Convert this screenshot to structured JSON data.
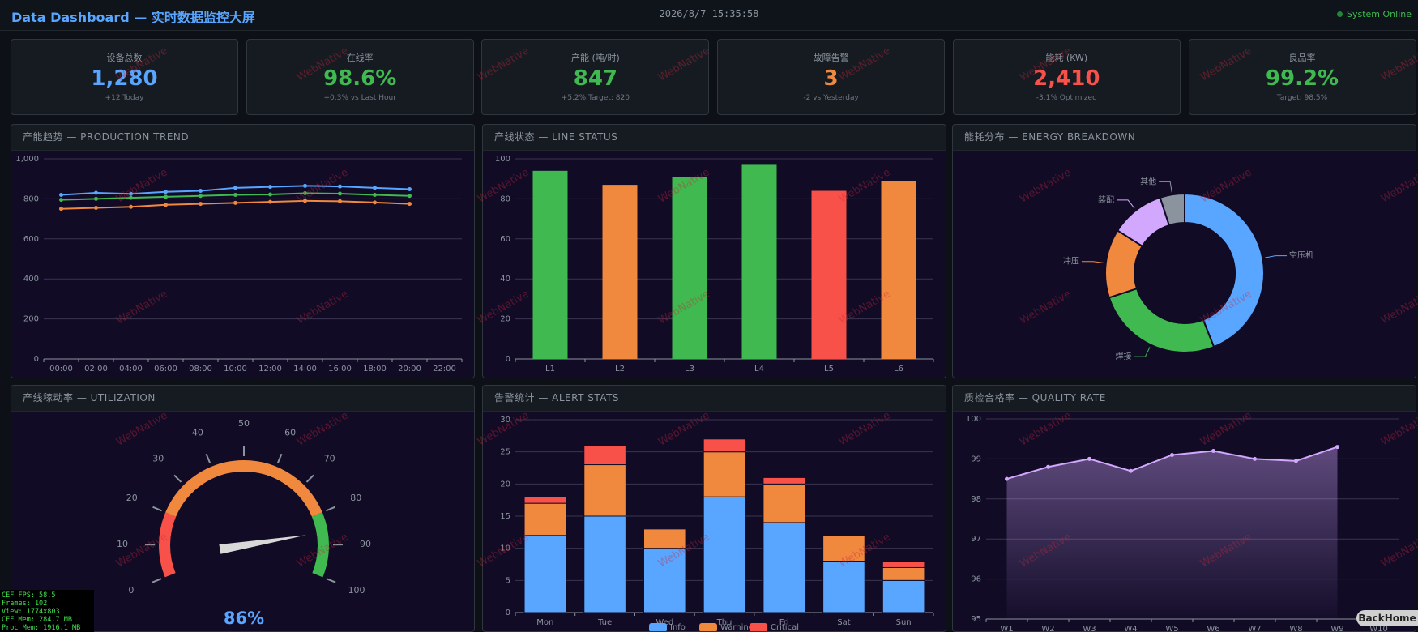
{
  "header": {
    "title": "Data Dashboard — 实时数据监控大屏",
    "time": "2026/8/7 15:35:58",
    "status": "System Online"
  },
  "kpis": [
    {
      "label": "设备总数",
      "value": "1,280",
      "note": "+12 Today",
      "color": "#58a6ff"
    },
    {
      "label": "在线率",
      "value": "98.6%",
      "note": "+0.3% vs Last Hour",
      "color": "#3fb950"
    },
    {
      "label": "产能 (吨/时)",
      "value": "847",
      "note": "+5.2% Target: 820",
      "color": "#3fb950"
    },
    {
      "label": "故障告警",
      "value": "3",
      "note": "-2 vs Yesterday",
      "color": "#f0883e"
    },
    {
      "label": "能耗 (KW)",
      "value": "2,410",
      "note": "-3.1% Optimized",
      "color": "#f85149"
    },
    {
      "label": "良品率",
      "value": "99.2%",
      "note": "Target: 98.5%",
      "color": "#3fb950"
    }
  ],
  "watermark": "WebNative",
  "debug": [
    "CEF FPS: 58.5",
    "Frames: 102",
    "View: 1774x803",
    "CEF Mem: 284.7 MB",
    "Proc Mem: 1916.1 MB"
  ],
  "back_button": "BackHome",
  "chart_data": [
    {
      "type": "line",
      "title": "产能趋势 — PRODUCTION TREND",
      "categories": [
        "00:00",
        "02:00",
        "04:00",
        "06:00",
        "08:00",
        "10:00",
        "12:00",
        "14:00",
        "16:00",
        "18:00",
        "20:00",
        "22:00"
      ],
      "series": [
        {
          "color": "#58a6ff",
          "values": [
            820,
            830,
            825,
            835,
            840,
            855,
            860,
            865,
            862,
            855,
            848,
            null
          ]
        },
        {
          "color": "#3fb950",
          "values": [
            795,
            800,
            805,
            810,
            815,
            820,
            822,
            828,
            826,
            820,
            815,
            null
          ]
        },
        {
          "color": "#f0883e",
          "values": [
            750,
            755,
            760,
            770,
            775,
            780,
            785,
            790,
            788,
            782,
            775,
            null
          ]
        }
      ],
      "ylim": [
        0,
        1000
      ],
      "yticks": [
        0,
        200,
        400,
        600,
        800,
        {
          "value": 1000,
          "label": "1,000"
        }
      ],
      "grid": true
    },
    {
      "type": "bar",
      "title": "产线状态 — LINE STATUS",
      "categories": [
        "L1",
        "L2",
        "L3",
        "L4",
        "L5",
        "L6"
      ],
      "values": [
        94,
        87,
        91,
        97,
        84,
        89
      ],
      "colors": [
        "#3fb950",
        "#f0883e",
        "#3fb950",
        "#3fb950",
        "#f85149",
        "#f0883e"
      ],
      "ylim": [
        0,
        100
      ],
      "yticks": [
        0,
        20,
        40,
        60,
        80,
        100
      ],
      "grid": true
    },
    {
      "type": "pie",
      "title": "能耗分布 — ENERGY BREAKDOWN",
      "donut": true,
      "categories": [
        "空压机",
        "焊接",
        "冲压",
        "装配",
        "其他"
      ],
      "values": [
        44,
        26,
        14,
        11,
        5
      ],
      "colors": [
        "#58a6ff",
        "#3fb950",
        "#f0883e",
        "#d2a8ff",
        "#8b949e"
      ]
    },
    {
      "type": "gauge",
      "title": "产线稼动率 — UTILIZATION",
      "value": 86,
      "value_label": "86%",
      "ylim": [
        0,
        100
      ],
      "yticks": [
        0,
        10,
        20,
        30,
        40,
        50,
        60,
        70,
        80,
        90,
        100
      ],
      "bands": [
        {
          "to": 20,
          "color": "#f85149"
        },
        {
          "to": 80,
          "color": "#f0883e"
        },
        {
          "to": 100,
          "color": "#3fb950"
        }
      ]
    },
    {
      "type": "bar",
      "stacked": true,
      "title": "告警统计 — ALERT STATS",
      "categories": [
        "Mon",
        "Tue",
        "Wed",
        "Thu",
        "Fri",
        "Sat",
        "Sun"
      ],
      "series": [
        {
          "name": "Info",
          "color": "#58a6ff",
          "values": [
            12,
            15,
            10,
            18,
            14,
            8,
            5
          ]
        },
        {
          "name": "Warning",
          "color": "#f0883e",
          "values": [
            5,
            8,
            3,
            7,
            6,
            4,
            2
          ]
        },
        {
          "name": "Critical",
          "color": "#f85149",
          "values": [
            1,
            3,
            0,
            2,
            1,
            0,
            1
          ]
        }
      ],
      "ylim": [
        0,
        30
      ],
      "yticks": [
        0,
        5,
        10,
        15,
        20,
        25,
        30
      ],
      "grid": true,
      "legend": "bottom"
    },
    {
      "type": "area",
      "title": "质检合格率 — QUALITY RATE",
      "categories": [
        "W1",
        "W2",
        "W3",
        "W4",
        "W5",
        "W6",
        "W7",
        "W8",
        "W9",
        "W10"
      ],
      "values": [
        98.5,
        98.8,
        99.0,
        98.7,
        99.1,
        99.2,
        99.0,
        98.95,
        99.3,
        null
      ],
      "color": "#d2a8ff",
      "ylim": [
        95,
        100
      ],
      "yticks": [
        95,
        96,
        97,
        98,
        99,
        100
      ],
      "grid": true
    }
  ]
}
